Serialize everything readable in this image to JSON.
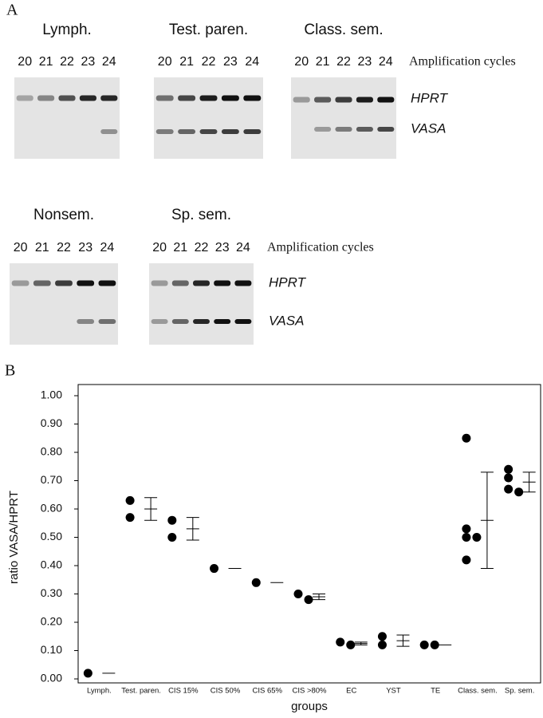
{
  "panel_a": {
    "label": "A",
    "cycles_label": "Amplification cycles",
    "gene_labels": [
      "HPRT",
      "VASA"
    ],
    "gels": [
      {
        "title": "Lymph.",
        "lanes": [
          "20",
          "21",
          "22",
          "23",
          "24"
        ]
      },
      {
        "title": "Test. paren.",
        "lanes": [
          "20",
          "21",
          "22",
          "23",
          "24"
        ]
      },
      {
        "title": "Class. sem.",
        "lanes": [
          "20",
          "21",
          "22",
          "23",
          "24"
        ]
      },
      {
        "title": "Nonsem.",
        "lanes": [
          "20",
          "21",
          "22",
          "23",
          "24"
        ]
      },
      {
        "title": "Sp. sem.",
        "lanes": [
          "20",
          "21",
          "22",
          "23",
          "24"
        ]
      }
    ]
  },
  "panel_b_label": "B",
  "chart_data": {
    "type": "scatter",
    "ylabel": "ratio VASA/HPRT",
    "xlabel": "groups",
    "color": "#000000",
    "categories": [
      "Lymph.",
      "Test. paren.",
      "CIS 15%",
      "CIS 50%",
      "CIS 65%",
      "CIS >80%",
      "EC",
      "YST",
      "TE",
      "Class. sem.",
      "Sp. sem."
    ],
    "groups": [
      {
        "values": [
          0.02
        ],
        "mean": 0.02
      },
      {
        "values": [
          0.63,
          0.57
        ],
        "mean": 0.6,
        "error": 0.04
      },
      {
        "values": [
          0.56,
          0.5
        ],
        "mean": 0.53,
        "error": 0.04
      },
      {
        "values": [
          0.39
        ],
        "mean": 0.39
      },
      {
        "values": [
          0.34
        ],
        "mean": 0.34
      },
      {
        "values": [
          0.3,
          0.28
        ],
        "mean": 0.29,
        "error": 0.01
      },
      {
        "values": [
          0.13,
          0.12
        ],
        "mean": 0.125,
        "error": 0.005
      },
      {
        "values": [
          0.15,
          0.12
        ],
        "mean": 0.135,
        "error": 0.02
      },
      {
        "values": [
          0.12,
          0.12
        ],
        "mean": 0.12
      },
      {
        "values": [
          0.85,
          0.53,
          0.5,
          0.5,
          0.42
        ],
        "mean": 0.56,
        "error": 0.17
      },
      {
        "values": [
          0.74,
          0.71,
          0.67,
          0.66
        ],
        "mean": 0.695,
        "error": 0.035
      }
    ],
    "ylim": [
      0,
      1
    ],
    "yticks": [
      {
        "value": 0,
        "label": "0.00"
      },
      {
        "value": 0.1,
        "label": "0.10"
      },
      {
        "value": 0.2,
        "label": "0.20"
      },
      {
        "value": 0.3,
        "label": "0.30"
      },
      {
        "value": 0.4,
        "label": "0.40"
      },
      {
        "value": 0.5,
        "label": "0.50"
      },
      {
        "value": 0.6,
        "label": "0.60"
      },
      {
        "value": 0.7,
        "label": "0.70"
      },
      {
        "value": 0.8,
        "label": "0.80"
      },
      {
        "value": 0.9,
        "label": "0.90"
      },
      {
        "value": 1,
        "label": "1.00"
      }
    ]
  }
}
